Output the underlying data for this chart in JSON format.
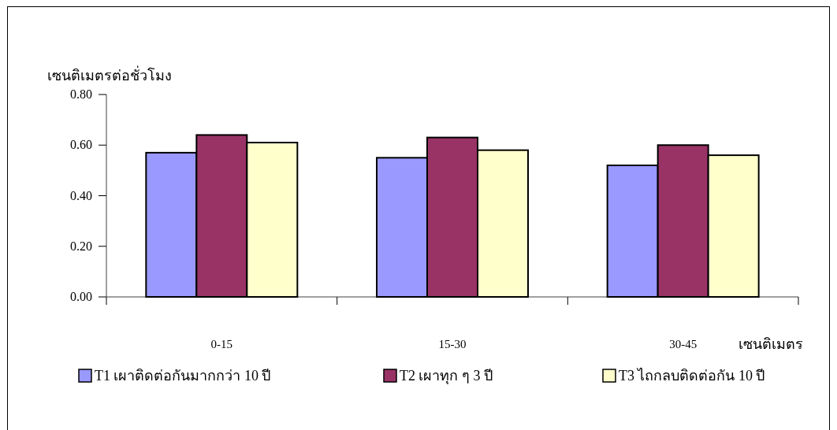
{
  "chart_data": {
    "type": "bar",
    "ylabel": "เซนติเมตรต่อชั่วโมง",
    "xlabel": "เซนติเมตร",
    "categories": [
      "0-15",
      "15-30",
      "30-45"
    ],
    "series": [
      {
        "name": "T1 เผาติดต่อกันมากกว่า 10 ปี",
        "color": "#9999ff",
        "values": [
          0.57,
          0.55,
          0.52
        ]
      },
      {
        "name": "T2 เผาทุก ๆ 3 ปี",
        "color": "#993366",
        "values": [
          0.64,
          0.63,
          0.6
        ]
      },
      {
        "name": "T3 ไถกลบติดต่อกัน 10 ปี",
        "color": "#ffffcc",
        "values": [
          0.61,
          0.58,
          0.56
        ]
      }
    ],
    "ylim": [
      0,
      0.8
    ],
    "yticks": [
      {
        "value": 0,
        "label": "0.00"
      },
      {
        "value": 0.2,
        "label": "0.20"
      },
      {
        "value": 0.4,
        "label": "0.40"
      },
      {
        "value": 0.6,
        "label": "0.60"
      },
      {
        "value": 0.8,
        "label": "0.80"
      }
    ],
    "legend": "bottom"
  }
}
